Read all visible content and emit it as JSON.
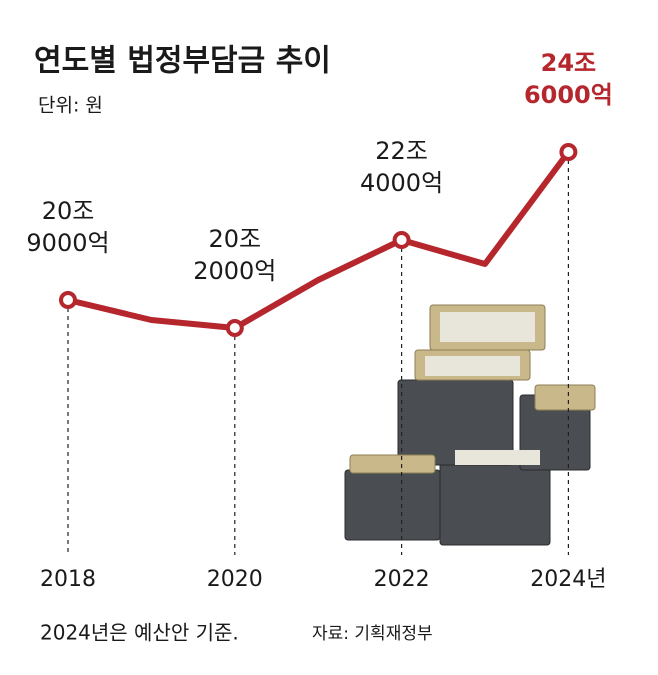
{
  "chart_data": {
    "type": "line",
    "title": "연도별 법정부담금 추이",
    "subtitle": "단위: 원",
    "categories": [
      "2018",
      null,
      "2020",
      null,
      "2022",
      null,
      "2024년"
    ],
    "values": [
      20.9,
      20.4,
      20.2,
      21.4,
      22.4,
      21.8,
      24.6
    ],
    "value_labels": [
      "20조 9000억",
      null,
      "20조 2000억",
      null,
      "22조 4000억",
      null,
      "24조 6000억"
    ],
    "color": "#b5272d",
    "value_label_color": "#1a1a1a",
    "highlight_color": "#b5272d",
    "highlight_index": 6,
    "footnote": "2024년은 예산안 기준.",
    "source": "자료: 기획재정부"
  }
}
